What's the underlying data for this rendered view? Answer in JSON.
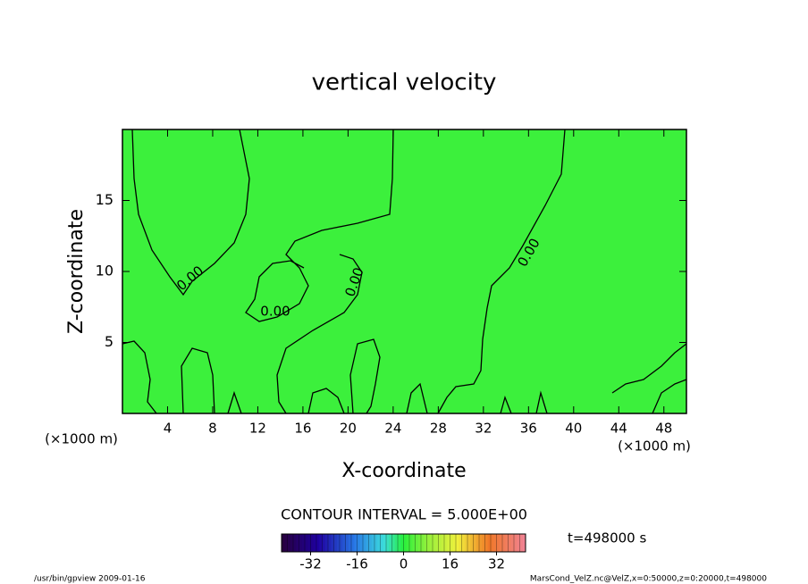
{
  "chart_data": {
    "type": "contour",
    "title": "vertical velocity",
    "x_label": "X-coordinate",
    "y_label": "Z-coordinate",
    "x_unit": "(×1000 m)",
    "y_unit": "(×1000 m)",
    "xlim": [
      0,
      50
    ],
    "xticks": [
      4,
      8,
      12,
      16,
      20,
      24,
      28,
      32,
      36,
      40,
      44,
      48
    ],
    "ylim": [
      0,
      20
    ],
    "yticks": [
      5,
      10,
      15
    ],
    "fill_color": "#3cf03c",
    "contour_interval": "CONTOUR INTERVAL = 5.000E+00",
    "contour_labels": [
      {
        "value": 0,
        "label": "0.00"
      },
      {
        "value": 0,
        "label": "0.00"
      },
      {
        "value": 0,
        "label": "0.00"
      },
      {
        "value": 0,
        "label": "0.00"
      }
    ],
    "colorbar": {
      "clim": [
        -42,
        42
      ],
      "ticks": [
        -32,
        -16,
        0,
        16,
        32
      ]
    },
    "time_label": "t=498000 s"
  },
  "footer": {
    "left": "/usr/bin/gpview  2009-01-16",
    "right": "MarsCond_VelZ.nc@VelZ,x=0:50000,z=0:20000,t=498000"
  }
}
